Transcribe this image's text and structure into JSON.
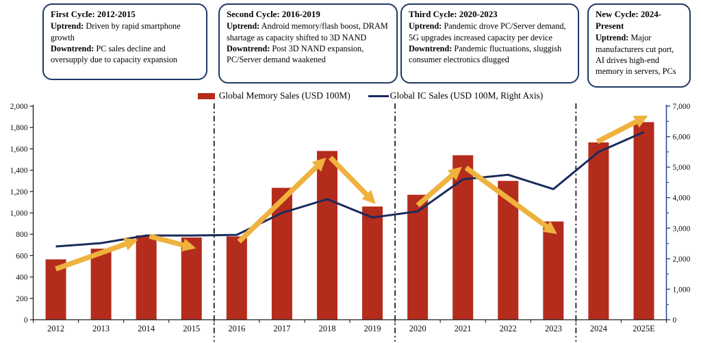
{
  "callouts": [
    {
      "title": "First Cycle: 2012-2015",
      "items": [
        {
          "label": "Uptrend:",
          "text": " Driven by rapid smartphone growth"
        },
        {
          "label": "Downtrend:",
          "text": " PC sales decline and oversupply due to capacity expansion"
        }
      ]
    },
    {
      "title": "Second Cycle: 2016-2019",
      "items": [
        {
          "label": "Uptrend:",
          "text": " Android memory/flash boost, DRAM shartage as capacity shifted to 3D NAND"
        },
        {
          "label": "Downtrend:",
          "text": " Post 3D NAND expansion, PC/Server demand waakened"
        }
      ]
    },
    {
      "title": "Third Cycle: 2020-2023",
      "items": [
        {
          "label": "Uptrend:",
          "text": " Pandemic drove PC/Server demand, 5G upgrades increased capacity per device"
        },
        {
          "label": "Downtrend:",
          "text": " Pandemic fluctuations, sluggish consumer electronics dlugged"
        }
      ]
    },
    {
      "title": "New Cycle: 2024-Present",
      "items": [
        {
          "label": "Uptrend:",
          "text": " Major manufacturers cut port, AI drives high-end memory in servers, PCs"
        }
      ]
    }
  ],
  "legend": [
    {
      "label": "Global Memory Sales (USD 100M)",
      "swatch": "bar"
    },
    {
      "label": "Global IC Sales (USD 100M, Right Axis)",
      "swatch": "line"
    }
  ],
  "colors": {
    "bar": "#B42C1C",
    "line": "#1A2A5C",
    "arrow": "#EFB23E",
    "axis_left": "#1a1a1a",
    "axis_right": "#2E4A8F",
    "box_border": "#1F3864",
    "separator": "#101010"
  },
  "chart_data": {
    "type": "bar",
    "title": "",
    "xlabel": "",
    "ylabel_left": "Global Memory Sales (USD 100M)",
    "ylabel_right": "Global IC Sales (USD 100M)",
    "categories": [
      "2012",
      "2013",
      "2014",
      "2015",
      "2016",
      "2017",
      "2018",
      "2019",
      "2020",
      "2021",
      "2022",
      "2023",
      "2024",
      "2025E"
    ],
    "series": [
      {
        "name": "Global Memory Sales (USD 100M)",
        "type": "bar",
        "axis": "left",
        "values": [
          565,
          665,
          790,
          770,
          780,
          1235,
          1580,
          1060,
          1170,
          1540,
          1300,
          920,
          1660,
          1850
        ]
      },
      {
        "name": "Global IC Sales (USD 100M, Right Axis)",
        "type": "line",
        "axis": "right",
        "values": [
          2400,
          2510,
          2760,
          2760,
          2780,
          3500,
          3950,
          3350,
          3550,
          4600,
          4750,
          4280,
          5500,
          6150
        ]
      }
    ],
    "left_axis": {
      "min": 0,
      "max": 2000,
      "step": 200,
      "ticks": [
        "0",
        "200",
        "400",
        "600",
        "800",
        "1,000",
        "1,200",
        "1,400",
        "1,600",
        "1,800",
        "2,000"
      ]
    },
    "right_axis": {
      "min": 0,
      "max": 7000,
      "step": 1000,
      "minor_step": 500,
      "ticks": [
        "0",
        "1,000",
        "2,000",
        "3,000",
        "4,000",
        "5,000",
        "6,000",
        "7,000"
      ]
    },
    "grid": false,
    "legend_position": "top",
    "separators_after": [
      "2015",
      "2019",
      "2023"
    ],
    "trend_arrows": [
      {
        "from": [
          0.0,
          475
        ],
        "to": [
          1.72,
          735
        ]
      },
      {
        "from": [
          2.07,
          782
        ],
        "to": [
          3.0,
          679
        ]
      },
      {
        "from": [
          4.05,
          731
        ],
        "to": [
          5.9,
          1487
        ]
      },
      {
        "from": [
          6.07,
          1519
        ],
        "to": [
          7.0,
          1115
        ]
      },
      {
        "from": [
          8.0,
          1071
        ],
        "to": [
          8.9,
          1404
        ]
      },
      {
        "from": [
          9.07,
          1423
        ],
        "to": [
          11.0,
          827
        ]
      },
      {
        "from": [
          11.97,
          1667
        ],
        "to": [
          13.0,
          1891
        ]
      }
    ]
  }
}
